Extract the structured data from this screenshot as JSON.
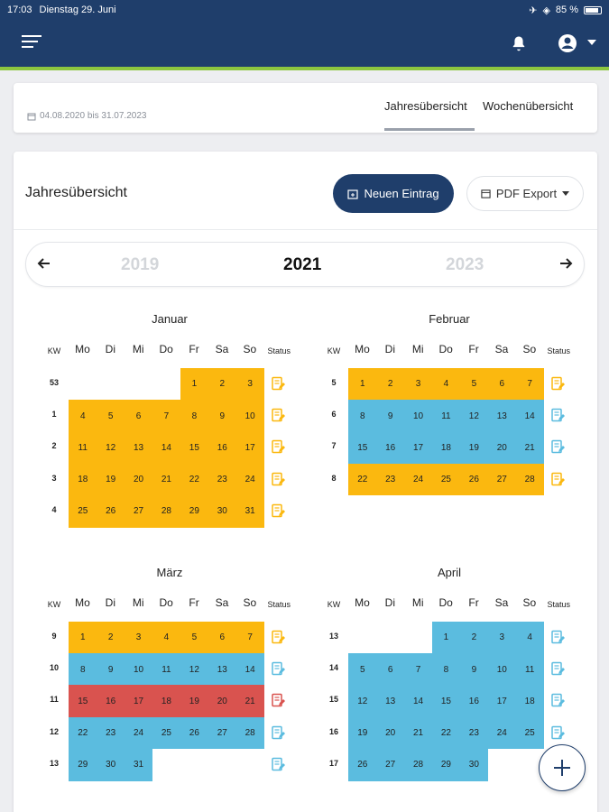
{
  "statusbar": {
    "time": "17:03",
    "date": "Dienstag 29. Juni",
    "battery": "85 %"
  },
  "header": {
    "menu_icon": "menu-icon",
    "bell_icon": "bell-icon",
    "user_icon": "user-circle-icon"
  },
  "period": {
    "range": "04.08.2020 bis 31.07.2023",
    "tabs": [
      {
        "label": "Jahresübersicht",
        "active": true
      },
      {
        "label": "Wochenübersicht",
        "active": false
      }
    ]
  },
  "overview": {
    "title": "Jahresübersicht",
    "new_entry_label": "Neuen Eintrag",
    "pdf_export_label": "PDF Export"
  },
  "yearnav": {
    "prev": "2019",
    "current": "2021",
    "next": "2023"
  },
  "weekday_headers": {
    "kw": "KW",
    "days": [
      "Mo",
      "Di",
      "Mi",
      "Do",
      "Fr",
      "Sa",
      "So"
    ],
    "status": "Status"
  },
  "colors": {
    "approved": "#fbb80f",
    "planned": "#5bbcdf",
    "rejected": "#d9534f",
    "primary": "#1f3e6b",
    "accent": "#8cc63f"
  },
  "months": [
    {
      "name": "Januar",
      "weeks": [
        {
          "kw": "53",
          "start": 4,
          "days": [
            1,
            2,
            3
          ],
          "color": "y",
          "status": "y"
        },
        {
          "kw": "1",
          "start": 0,
          "days": [
            4,
            5,
            6,
            7,
            8,
            9,
            10
          ],
          "color": "y",
          "status": "y"
        },
        {
          "kw": "2",
          "start": 0,
          "days": [
            11,
            12,
            13,
            14,
            15,
            16,
            17
          ],
          "color": "y",
          "status": "y"
        },
        {
          "kw": "3",
          "start": 0,
          "days": [
            18,
            19,
            20,
            21,
            22,
            23,
            24
          ],
          "color": "y",
          "status": "y"
        },
        {
          "kw": "4",
          "start": 0,
          "days": [
            25,
            26,
            27,
            28,
            29,
            30,
            31
          ],
          "color": "y",
          "status": "y"
        }
      ]
    },
    {
      "name": "Februar",
      "weeks": [
        {
          "kw": "5",
          "start": 0,
          "days": [
            1,
            2,
            3,
            4,
            5,
            6,
            7
          ],
          "color": "y",
          "status": "y"
        },
        {
          "kw": "6",
          "start": 0,
          "days": [
            8,
            9,
            10,
            11,
            12,
            13,
            14
          ],
          "color": "b",
          "status": "b"
        },
        {
          "kw": "7",
          "start": 0,
          "days": [
            15,
            16,
            17,
            18,
            19,
            20,
            21
          ],
          "color": "b",
          "status": "b"
        },
        {
          "kw": "8",
          "start": 0,
          "days": [
            22,
            23,
            24,
            25,
            26,
            27,
            28
          ],
          "color": "y",
          "status": "y"
        }
      ]
    },
    {
      "name": "März",
      "weeks": [
        {
          "kw": "9",
          "start": 0,
          "days": [
            1,
            2,
            3,
            4,
            5,
            6,
            7
          ],
          "color": "y",
          "status": "y"
        },
        {
          "kw": "10",
          "start": 0,
          "days": [
            8,
            9,
            10,
            11,
            12,
            13,
            14
          ],
          "color": "b",
          "status": "b"
        },
        {
          "kw": "11",
          "start": 0,
          "days": [
            15,
            16,
            17,
            18,
            19,
            20,
            21
          ],
          "color": "r",
          "status": "r"
        },
        {
          "kw": "12",
          "start": 0,
          "days": [
            22,
            23,
            24,
            25,
            26,
            27,
            28
          ],
          "color": "b",
          "status": "b"
        },
        {
          "kw": "13",
          "start": 0,
          "days": [
            29,
            30,
            31
          ],
          "color": "b",
          "status": "b"
        }
      ]
    },
    {
      "name": "April",
      "weeks": [
        {
          "kw": "13",
          "start": 3,
          "days": [
            1,
            2,
            3,
            4
          ],
          "color": "b",
          "status": "b"
        },
        {
          "kw": "14",
          "start": 0,
          "days": [
            5,
            6,
            7,
            8,
            9,
            10,
            11
          ],
          "color": "b",
          "status": "b"
        },
        {
          "kw": "15",
          "start": 0,
          "days": [
            12,
            13,
            14,
            15,
            16,
            17,
            18
          ],
          "color": "b",
          "status": "b"
        },
        {
          "kw": "16",
          "start": 0,
          "days": [
            19,
            20,
            21,
            22,
            23,
            24,
            25
          ],
          "color": "b",
          "status": "b"
        },
        {
          "kw": "17",
          "start": 0,
          "days": [
            26,
            27,
            28,
            29,
            30
          ],
          "color": "b",
          "status": ""
        }
      ]
    }
  ]
}
